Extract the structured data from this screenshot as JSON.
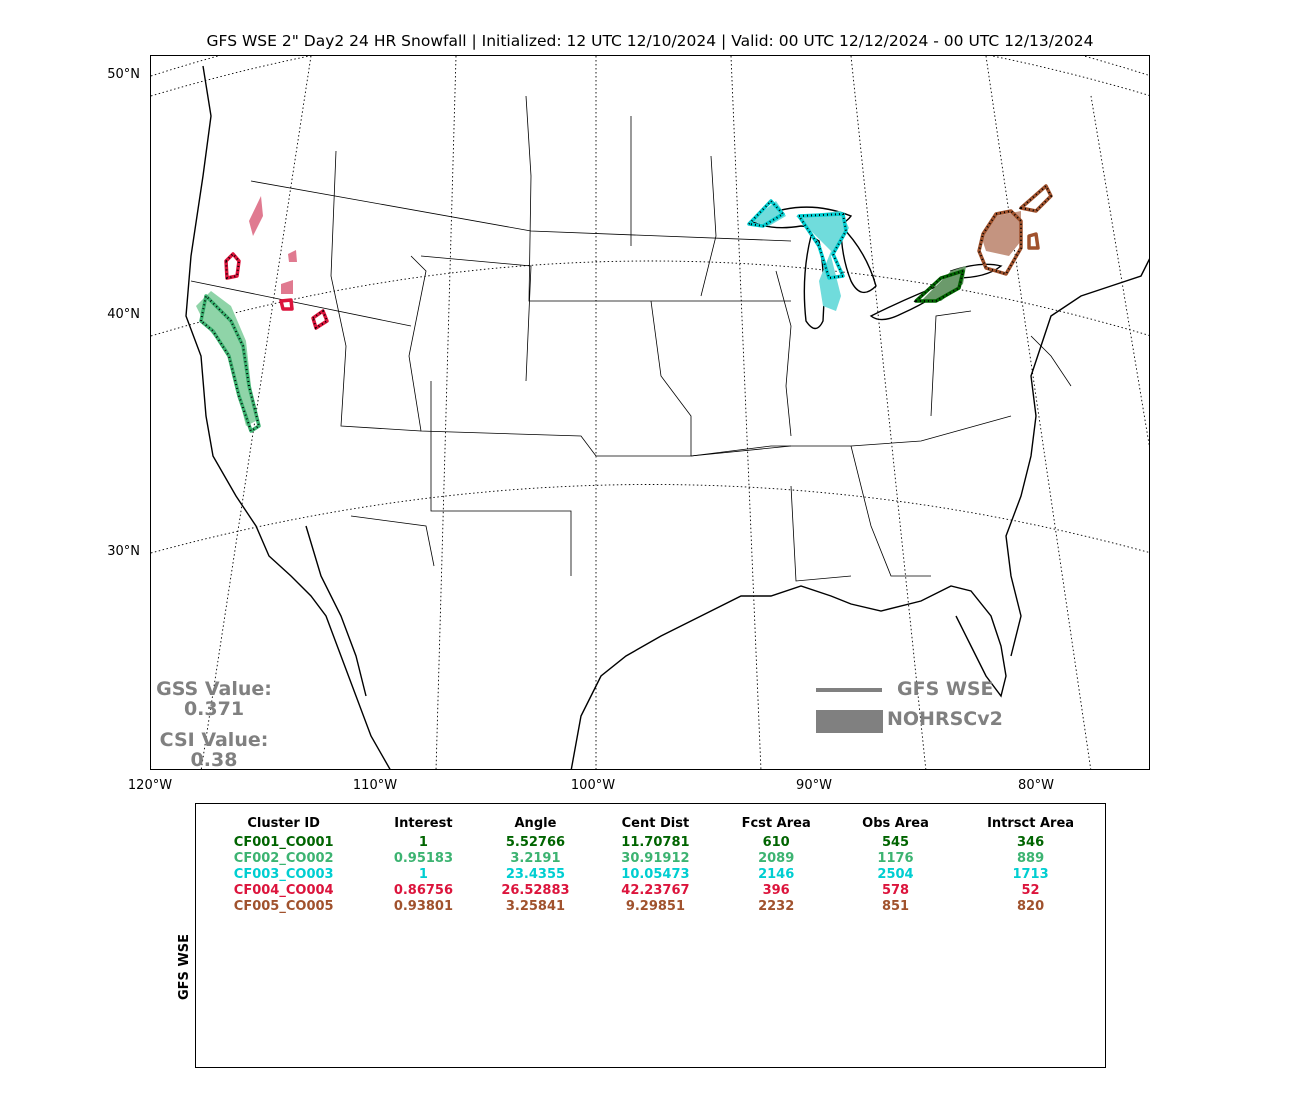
{
  "title": "GFS WSE 2\" Day2 24 HR Snowfall | Initialized: 12 UTC 12/10/2024 | Valid: 00 UTC 12/12/2024 - 00 UTC 12/13/2024",
  "axes": {
    "lat_labels": [
      "50°N",
      "40°N",
      "30°N"
    ],
    "lon_labels": [
      "120°W",
      "110°W",
      "100°W",
      "90°W",
      "80°W"
    ]
  },
  "scores": {
    "gss_label": "GSS Value:",
    "gss_value": "0.371",
    "csi_label": "CSI Value:",
    "csi_value": "0.38"
  },
  "legend": {
    "forecast_label": "GFS WSE",
    "observed_label": "NOHRSCv2",
    "forecast_color": "#808080",
    "observed_color": "#808080"
  },
  "table": {
    "side_label": "GFS WSE",
    "columns": [
      "Cluster ID",
      "Interest",
      "Angle",
      "Cent Dist",
      "Fcst Area",
      "Obs Area",
      "Intrsct Area"
    ],
    "rows": [
      {
        "color": "#006400",
        "cells": [
          "CF001_CO001",
          "1",
          "5.52766",
          "11.70781",
          "610",
          "545",
          "346"
        ]
      },
      {
        "color": "#3cb371",
        "cells": [
          "CF002_CO002",
          "0.95183",
          "3.2191",
          "30.91912",
          "2089",
          "1176",
          "889"
        ]
      },
      {
        "color": "#00ced1",
        "cells": [
          "CF003_CO003",
          "1",
          "23.4355",
          "10.05473",
          "2146",
          "2504",
          "1713"
        ]
      },
      {
        "color": "#dc143c",
        "cells": [
          "CF004_CO004",
          "0.86756",
          "26.52883",
          "42.23767",
          "396",
          "578",
          "52"
        ]
      },
      {
        "color": "#a0522d",
        "cells": [
          "CF005_CO005",
          "0.93801",
          "3.25841",
          "9.29851",
          "2232",
          "851",
          "820"
        ]
      }
    ]
  },
  "clusters": [
    {
      "id": "CF001_CO001",
      "line_color": "#006400",
      "fill_color": "#6b9a6b"
    },
    {
      "id": "CF002_CO002",
      "line_color": "#3cb371",
      "fill_color": "#8fd4a8"
    },
    {
      "id": "CF003_CO003",
      "line_color": "#00ced1",
      "fill_color": "#70dcdc"
    },
    {
      "id": "CF004_CO004",
      "line_color": "#dc143c",
      "fill_color": "#e07a90"
    },
    {
      "id": "CF005_CO005",
      "line_color": "#a0522d",
      "fill_color": "#c49480"
    }
  ]
}
